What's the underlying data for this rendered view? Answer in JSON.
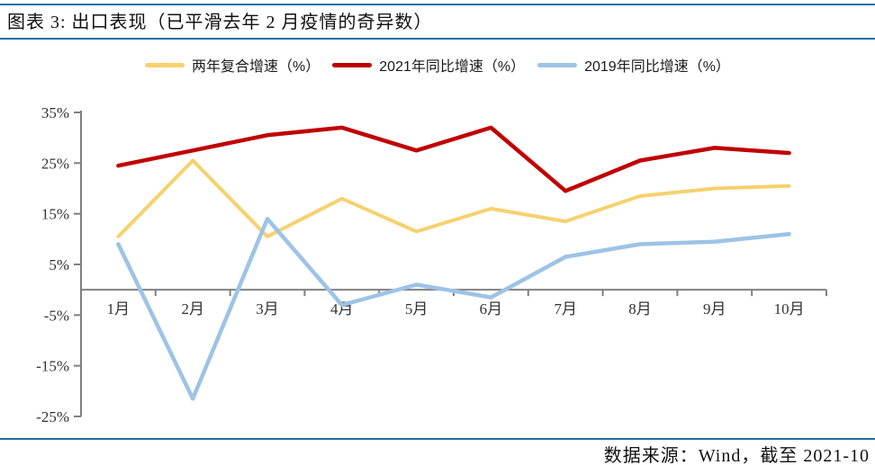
{
  "title": "图表 3: 出口表现（已平滑去年 2 月疫情的奇异数）",
  "footer": {
    "source_note": "数据来源：Wind，截至 2021-10"
  },
  "colors": {
    "rule_blue": "#1d6f9d",
    "axis_gray": "#808080",
    "label_text": "#333333",
    "yellow": "#F7D16E",
    "red": "#C00000",
    "light_blue": "#9DC3E6"
  },
  "chart_data": {
    "type": "line",
    "title": "出口表现（已平滑去年 2 月疫情的奇异数）",
    "categories": [
      "1月",
      "2月",
      "3月",
      "4月",
      "5月",
      "6月",
      "7月",
      "8月",
      "9月",
      "10月"
    ],
    "series": [
      {
        "name": "两年复合增速（%）",
        "color": "#F7D16E",
        "values": [
          10.5,
          25.5,
          10.5,
          18,
          11.5,
          16,
          13.5,
          18.5,
          20,
          20.5
        ]
      },
      {
        "name": "2021年同比增速（%）",
        "color": "#C00000",
        "values": [
          24.5,
          27.5,
          30.5,
          32,
          27.5,
          32,
          19.5,
          25.5,
          28,
          27
        ]
      },
      {
        "name": "2019年同比增速（%）",
        "color": "#9DC3E6",
        "values": [
          9,
          -21.5,
          14,
          -3,
          1,
          -1.5,
          6.5,
          9,
          9.5,
          11
        ]
      }
    ],
    "ylim": [
      -25,
      35
    ],
    "yticks": [
      35,
      25,
      15,
      5,
      -5,
      -15,
      -25
    ],
    "ytick_suffix": "%",
    "grid": false,
    "legend_position": "top",
    "paint_order": [
      0,
      2,
      1
    ]
  }
}
